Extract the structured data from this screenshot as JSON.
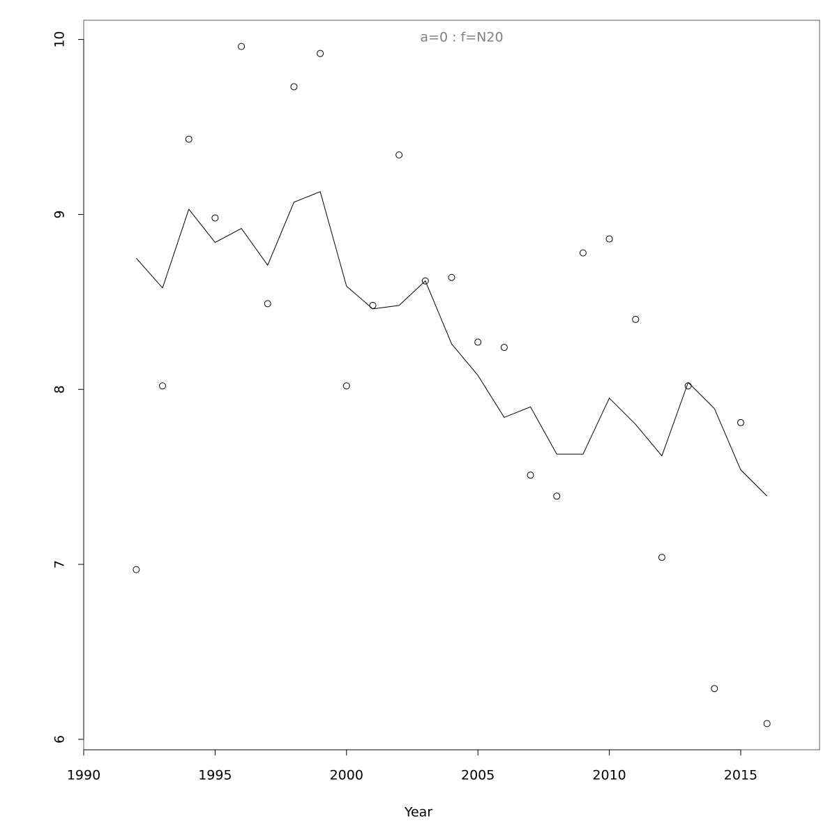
{
  "chart_data": {
    "type": "line",
    "title": "a=0  :  f=N20",
    "x_label": "Year",
    "x": [
      1992,
      1993,
      1994,
      1995,
      1996,
      1997,
      1998,
      1999,
      2000,
      2001,
      2002,
      2003,
      2004,
      2005,
      2006,
      2007,
      2008,
      2009,
      2010,
      2011,
      2012,
      2013,
      2014,
      2015,
      2016
    ],
    "series": [
      {
        "style": "points",
        "color": "#000000",
        "values": [
          6.97,
          8.02,
          9.43,
          8.98,
          9.96,
          8.49,
          9.73,
          9.92,
          8.02,
          8.48,
          9.34,
          8.62,
          8.64,
          8.27,
          8.24,
          7.51,
          7.39,
          8.78,
          8.86,
          8.4,
          7.04,
          8.02,
          6.29,
          7.81,
          6.09
        ]
      },
      {
        "style": "line",
        "color": "#000000",
        "values": [
          8.75,
          8.58,
          9.03,
          8.84,
          8.92,
          8.71,
          9.07,
          9.13,
          8.59,
          8.46,
          8.48,
          8.62,
          8.26,
          8.08,
          7.84,
          7.9,
          7.63,
          7.63,
          7.95,
          7.8,
          7.62,
          8.04,
          7.89,
          7.54,
          7.39
        ]
      }
    ],
    "xlim": [
      1990,
      2018
    ],
    "xticks": [
      1990,
      1995,
      2000,
      2005,
      2010,
      2015
    ],
    "ylim": [
      5.94,
      10.11
    ],
    "yticks": [
      6,
      7,
      8,
      9,
      10
    ],
    "grid": false
  }
}
